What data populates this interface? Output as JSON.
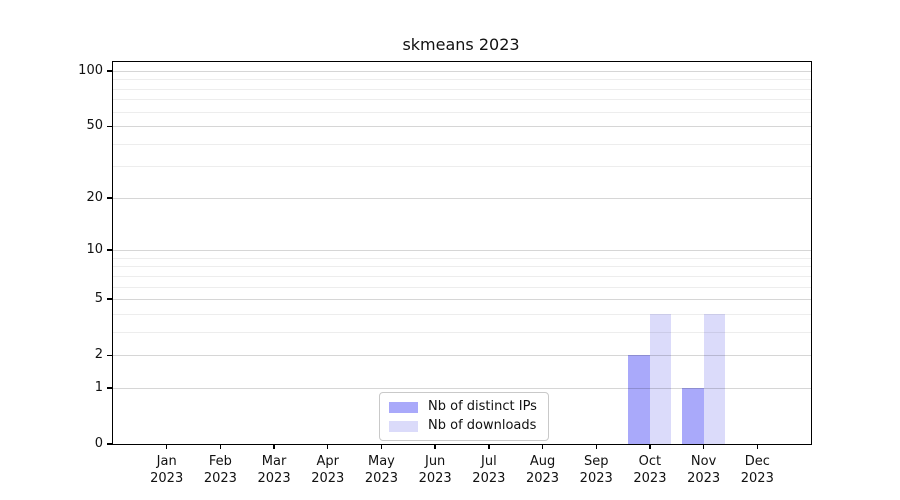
{
  "chart_data": {
    "type": "bar",
    "title": "skmeans 2023",
    "x_categories": [
      {
        "month": "Jan",
        "year": "2023"
      },
      {
        "month": "Feb",
        "year": "2023"
      },
      {
        "month": "Mar",
        "year": "2023"
      },
      {
        "month": "Apr",
        "year": "2023"
      },
      {
        "month": "May",
        "year": "2023"
      },
      {
        "month": "Jun",
        "year": "2023"
      },
      {
        "month": "Jul",
        "year": "2023"
      },
      {
        "month": "Aug",
        "year": "2023"
      },
      {
        "month": "Sep",
        "year": "2023"
      },
      {
        "month": "Oct",
        "year": "2023"
      },
      {
        "month": "Nov",
        "year": "2023"
      },
      {
        "month": "Dec",
        "year": "2023"
      }
    ],
    "series": [
      {
        "name": "Nb of distinct IPs",
        "color": "#a9a9fa",
        "values": [
          0,
          0,
          0,
          0,
          0,
          0,
          0,
          0,
          0,
          2,
          1,
          0
        ]
      },
      {
        "name": "Nb of downloads",
        "color": "#dbdbfa",
        "values": [
          0,
          0,
          0,
          0,
          0,
          0,
          0,
          0,
          0,
          4,
          4,
          0
        ]
      }
    ],
    "yscale": "log1p",
    "ylim": [
      0,
      112
    ],
    "yticks": [
      0,
      1,
      2,
      5,
      10,
      20,
      50,
      100
    ],
    "grid": "horizontal",
    "legend_position": "lower center",
    "colors": {
      "axis": "#000000",
      "grid_major": "#d6d6d6",
      "grid_minor": "#ececec",
      "text": "#111111",
      "legend_border": "#c9c9c9"
    }
  }
}
